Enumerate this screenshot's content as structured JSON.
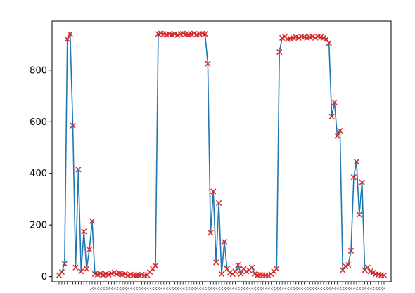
{
  "chart_data": {
    "type": "line",
    "title": "",
    "xlabel": "",
    "ylabel": "",
    "ylim": [
      -20,
      990
    ],
    "yticks": [
      0,
      200,
      400,
      600,
      800
    ],
    "grid": false,
    "legend": "none",
    "x_tick_labels_legible": false,
    "series": [
      {
        "style": "line",
        "color": "#1f77b4",
        "values": [
          5,
          18,
          50,
          920,
          940,
          585,
          35,
          415,
          20,
          175,
          30,
          105,
          215,
          10,
          8,
          12,
          6,
          10,
          8,
          12,
          15,
          10,
          13,
          8,
          10,
          5,
          8,
          6,
          5,
          6,
          8,
          5,
          6,
          18,
          30,
          42,
          940,
          942,
          940,
          938,
          940,
          938,
          940,
          936,
          940,
          942,
          940,
          938,
          940,
          942,
          938,
          940,
          942,
          940,
          825,
          170,
          330,
          55,
          285,
          10,
          135,
          30,
          15,
          10,
          20,
          45,
          10,
          30,
          20,
          25,
          35,
          10,
          5,
          8,
          6,
          5,
          4,
          10,
          20,
          30,
          870,
          925,
          930,
          920,
          922,
          925,
          928,
          925,
          930,
          928,
          925,
          928,
          930,
          925,
          930,
          928,
          925,
          920,
          905,
          620,
          675,
          545,
          565,
          25,
          40,
          45,
          100,
          385,
          445,
          240,
          365,
          25,
          35,
          20,
          15,
          10,
          8,
          6,
          5
        ]
      },
      {
        "style": "scatter",
        "marker": "x",
        "color": "#d62728",
        "values": [
          5,
          18,
          50,
          920,
          940,
          585,
          35,
          415,
          20,
          175,
          30,
          105,
          215,
          10,
          8,
          12,
          6,
          10,
          8,
          12,
          15,
          10,
          13,
          8,
          10,
          5,
          8,
          6,
          5,
          6,
          8,
          5,
          6,
          18,
          30,
          42,
          940,
          942,
          940,
          938,
          940,
          938,
          940,
          936,
          940,
          942,
          940,
          938,
          940,
          942,
          938,
          940,
          942,
          940,
          825,
          170,
          330,
          55,
          285,
          10,
          135,
          30,
          15,
          10,
          20,
          45,
          10,
          30,
          20,
          25,
          35,
          10,
          5,
          8,
          6,
          5,
          4,
          10,
          20,
          30,
          870,
          925,
          930,
          920,
          922,
          925,
          928,
          925,
          930,
          928,
          925,
          928,
          930,
          925,
          930,
          928,
          925,
          920,
          905,
          620,
          675,
          545,
          565,
          25,
          40,
          45,
          100,
          385,
          445,
          240,
          365,
          25,
          35,
          20,
          15,
          10,
          8,
          6,
          5
        ]
      }
    ]
  }
}
